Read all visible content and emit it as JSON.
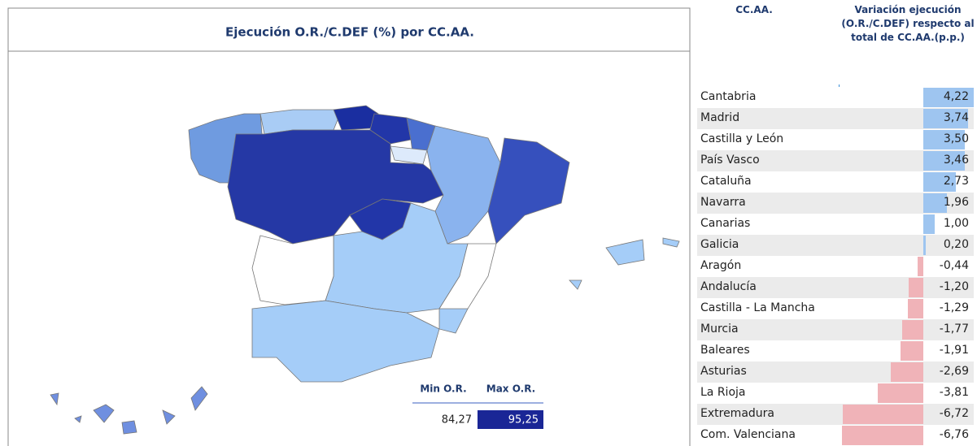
{
  "map": {
    "title": "Ejecución O.R./C.DEF (%) por CC.AA.",
    "legend": {
      "min_label": "Min O.R.",
      "max_label": "Max O.R.",
      "min_value": "84,27",
      "max_value": "95,25"
    }
  },
  "table": {
    "headers": [
      "CC.AA.",
      "Variación ejecución (O.R./C.DEF) respecto al total de CC.AA.(p.p.)"
    ],
    "rows": [
      {
        "name": "Cantabria",
        "value": 4.22,
        "label": "4,22"
      },
      {
        "name": "Madrid",
        "value": 3.74,
        "label": "3,74"
      },
      {
        "name": "Castilla y León",
        "value": 3.5,
        "label": "3,50"
      },
      {
        "name": "País Vasco",
        "value": 3.46,
        "label": "3,46"
      },
      {
        "name": "Cataluña",
        "value": 2.73,
        "label": "2,73"
      },
      {
        "name": "Navarra",
        "value": 1.96,
        "label": "1,96"
      },
      {
        "name": "Canarias",
        "value": 1.0,
        "label": "1,00"
      },
      {
        "name": "Galicia",
        "value": 0.2,
        "label": "0,20"
      },
      {
        "name": "Aragón",
        "value": -0.44,
        "label": "-0,44"
      },
      {
        "name": "Andalucía",
        "value": -1.2,
        "label": "-1,20"
      },
      {
        "name": "Castilla - La Mancha",
        "value": -1.29,
        "label": "-1,29"
      },
      {
        "name": "Murcia",
        "value": -1.77,
        "label": "-1,77"
      },
      {
        "name": "Baleares",
        "value": -1.91,
        "label": "-1,91"
      },
      {
        "name": "Asturias",
        "value": -2.69,
        "label": "-2,69"
      },
      {
        "name": "La Rioja",
        "value": -3.81,
        "label": "-3,81"
      },
      {
        "name": "Extremadura",
        "value": -6.72,
        "label": "-6,72"
      },
      {
        "name": "Com. Valenciana",
        "value": -6.76,
        "label": "-6,76"
      }
    ]
  }
}
